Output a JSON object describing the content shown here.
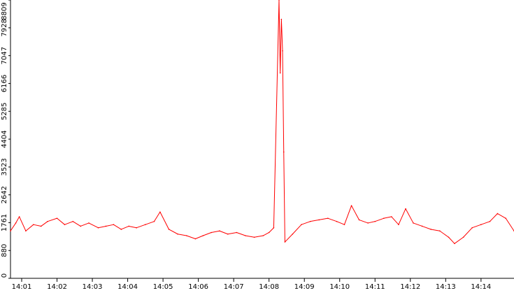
{
  "chart_data": {
    "type": "line",
    "title": "",
    "xlabel": "",
    "ylabel": "",
    "ylim": [
      0,
      8809
    ],
    "y_ticks": [
      0,
      880,
      1761,
      2642,
      3523,
      4404,
      5285,
      6166,
      7047,
      7928,
      8809
    ],
    "x_tick_labels": [
      "14:01",
      "14:02",
      "14:03",
      "14:04",
      "14:05",
      "14:06",
      "14:07",
      "14:08",
      "14:09",
      "14:10",
      "14:11",
      "14:12",
      "14:13",
      "14:14"
    ],
    "x_start": "14:00:41",
    "x_end": "14:14:56",
    "grid": false,
    "legend": "none",
    "colors": {
      "line": "#ff0000",
      "axis": "#000000",
      "background": "#ffffff"
    },
    "series": [
      {
        "points": [
          [
            "14:00:41",
            1500
          ],
          [
            "14:00:50",
            1750
          ],
          [
            "14:00:56",
            1950
          ],
          [
            "14:01:07",
            1500
          ],
          [
            "14:01:20",
            1700
          ],
          [
            "14:01:33",
            1650
          ],
          [
            "14:01:44",
            1800
          ],
          [
            "14:02:00",
            1900
          ],
          [
            "14:02:13",
            1700
          ],
          [
            "14:02:27",
            1800
          ],
          [
            "14:02:40",
            1650
          ],
          [
            "14:02:54",
            1750
          ],
          [
            "14:03:10",
            1600
          ],
          [
            "14:03:23",
            1650
          ],
          [
            "14:03:36",
            1700
          ],
          [
            "14:03:49",
            1550
          ],
          [
            "14:04:02",
            1650
          ],
          [
            "14:04:15",
            1600
          ],
          [
            "14:04:30",
            1700
          ],
          [
            "14:04:45",
            1800
          ],
          [
            "14:04:55",
            2100
          ],
          [
            "14:05:10",
            1550
          ],
          [
            "14:05:25",
            1400
          ],
          [
            "14:05:40",
            1350
          ],
          [
            "14:05:55",
            1250
          ],
          [
            "14:06:08",
            1350
          ],
          [
            "14:06:22",
            1450
          ],
          [
            "14:06:36",
            1500
          ],
          [
            "14:06:50",
            1400
          ],
          [
            "14:07:05",
            1450
          ],
          [
            "14:07:20",
            1350
          ],
          [
            "14:07:35",
            1300
          ],
          [
            "14:07:50",
            1350
          ],
          [
            "14:08:00",
            1450
          ],
          [
            "14:08:08",
            1600
          ],
          [
            "14:08:17",
            8809
          ],
          [
            "14:08:19",
            6500
          ],
          [
            "14:08:21",
            8200
          ],
          [
            "14:08:23",
            7200
          ],
          [
            "14:08:25",
            4000
          ],
          [
            "14:08:27",
            1150
          ],
          [
            "14:08:40",
            1400
          ],
          [
            "14:08:55",
            1700
          ],
          [
            "14:09:10",
            1800
          ],
          [
            "14:09:25",
            1850
          ],
          [
            "14:09:40",
            1900
          ],
          [
            "14:09:55",
            1800
          ],
          [
            "14:10:08",
            1700
          ],
          [
            "14:10:20",
            2300
          ],
          [
            "14:10:33",
            1850
          ],
          [
            "14:10:48",
            1750
          ],
          [
            "14:11:00",
            1800
          ],
          [
            "14:11:15",
            1900
          ],
          [
            "14:11:28",
            1950
          ],
          [
            "14:11:40",
            1700
          ],
          [
            "14:11:52",
            2200
          ],
          [
            "14:12:05",
            1750
          ],
          [
            "14:12:20",
            1650
          ],
          [
            "14:12:35",
            1550
          ],
          [
            "14:12:50",
            1500
          ],
          [
            "14:13:05",
            1300
          ],
          [
            "14:13:15",
            1100
          ],
          [
            "14:13:30",
            1300
          ],
          [
            "14:13:45",
            1600
          ],
          [
            "14:14:00",
            1700
          ],
          [
            "14:14:15",
            1800
          ],
          [
            "14:14:28",
            2050
          ],
          [
            "14:14:42",
            1900
          ],
          [
            "14:14:56",
            1500
          ]
        ]
      }
    ]
  }
}
